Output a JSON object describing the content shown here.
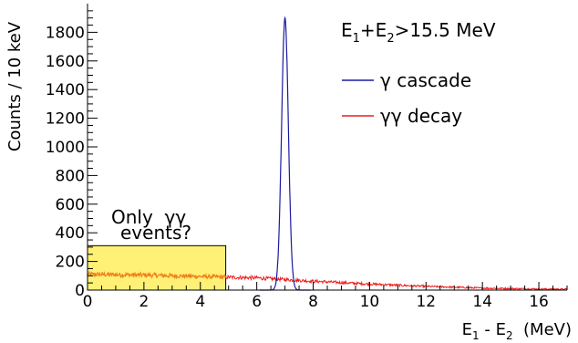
{
  "chart_data": {
    "type": "histogram",
    "xlabel": "E",
    "xlabel_parts": {
      "e1_sub": "1",
      "minus": " - E",
      "e2_sub": "2",
      "unit": "  (MeV)"
    },
    "ylabel": "Counts / 10 keV",
    "xlim": [
      0,
      17
    ],
    "ylim": [
      0,
      2000
    ],
    "x_ticks": [
      0,
      2,
      4,
      6,
      8,
      10,
      12,
      14,
      16
    ],
    "y_ticks": [
      0,
      200,
      400,
      600,
      800,
      1000,
      1200,
      1400,
      1600,
      1800
    ],
    "grid": false,
    "legend_placement": "top-right",
    "energy_cut": {
      "E": "E",
      "sub1": "1",
      "plus": "+E",
      "sub2": "2",
      "rest": ">15.5 MeV"
    },
    "annotation": {
      "line1": "Only  γγ",
      "line2": "events?"
    },
    "shaded_region": {
      "x": [
        0,
        4.9
      ],
      "y": [
        0,
        310
      ],
      "color": "#fff176"
    },
    "series": [
      {
        "name": "γ cascade",
        "color": "#1a1aa0",
        "peak_center": 7.0,
        "peak_height": 1900,
        "peak_sigma": 0.12
      },
      {
        "name": "γγ decay",
        "color": "#ee1c1c",
        "overlap_color": "#f07f1a",
        "points": [
          [
            0,
            110
          ],
          [
            2,
            105
          ],
          [
            4,
            95
          ],
          [
            6,
            85
          ],
          [
            8,
            62
          ],
          [
            10,
            42
          ],
          [
            12,
            26
          ],
          [
            14,
            14
          ],
          [
            16,
            8
          ],
          [
            17,
            6
          ]
        ]
      }
    ]
  }
}
